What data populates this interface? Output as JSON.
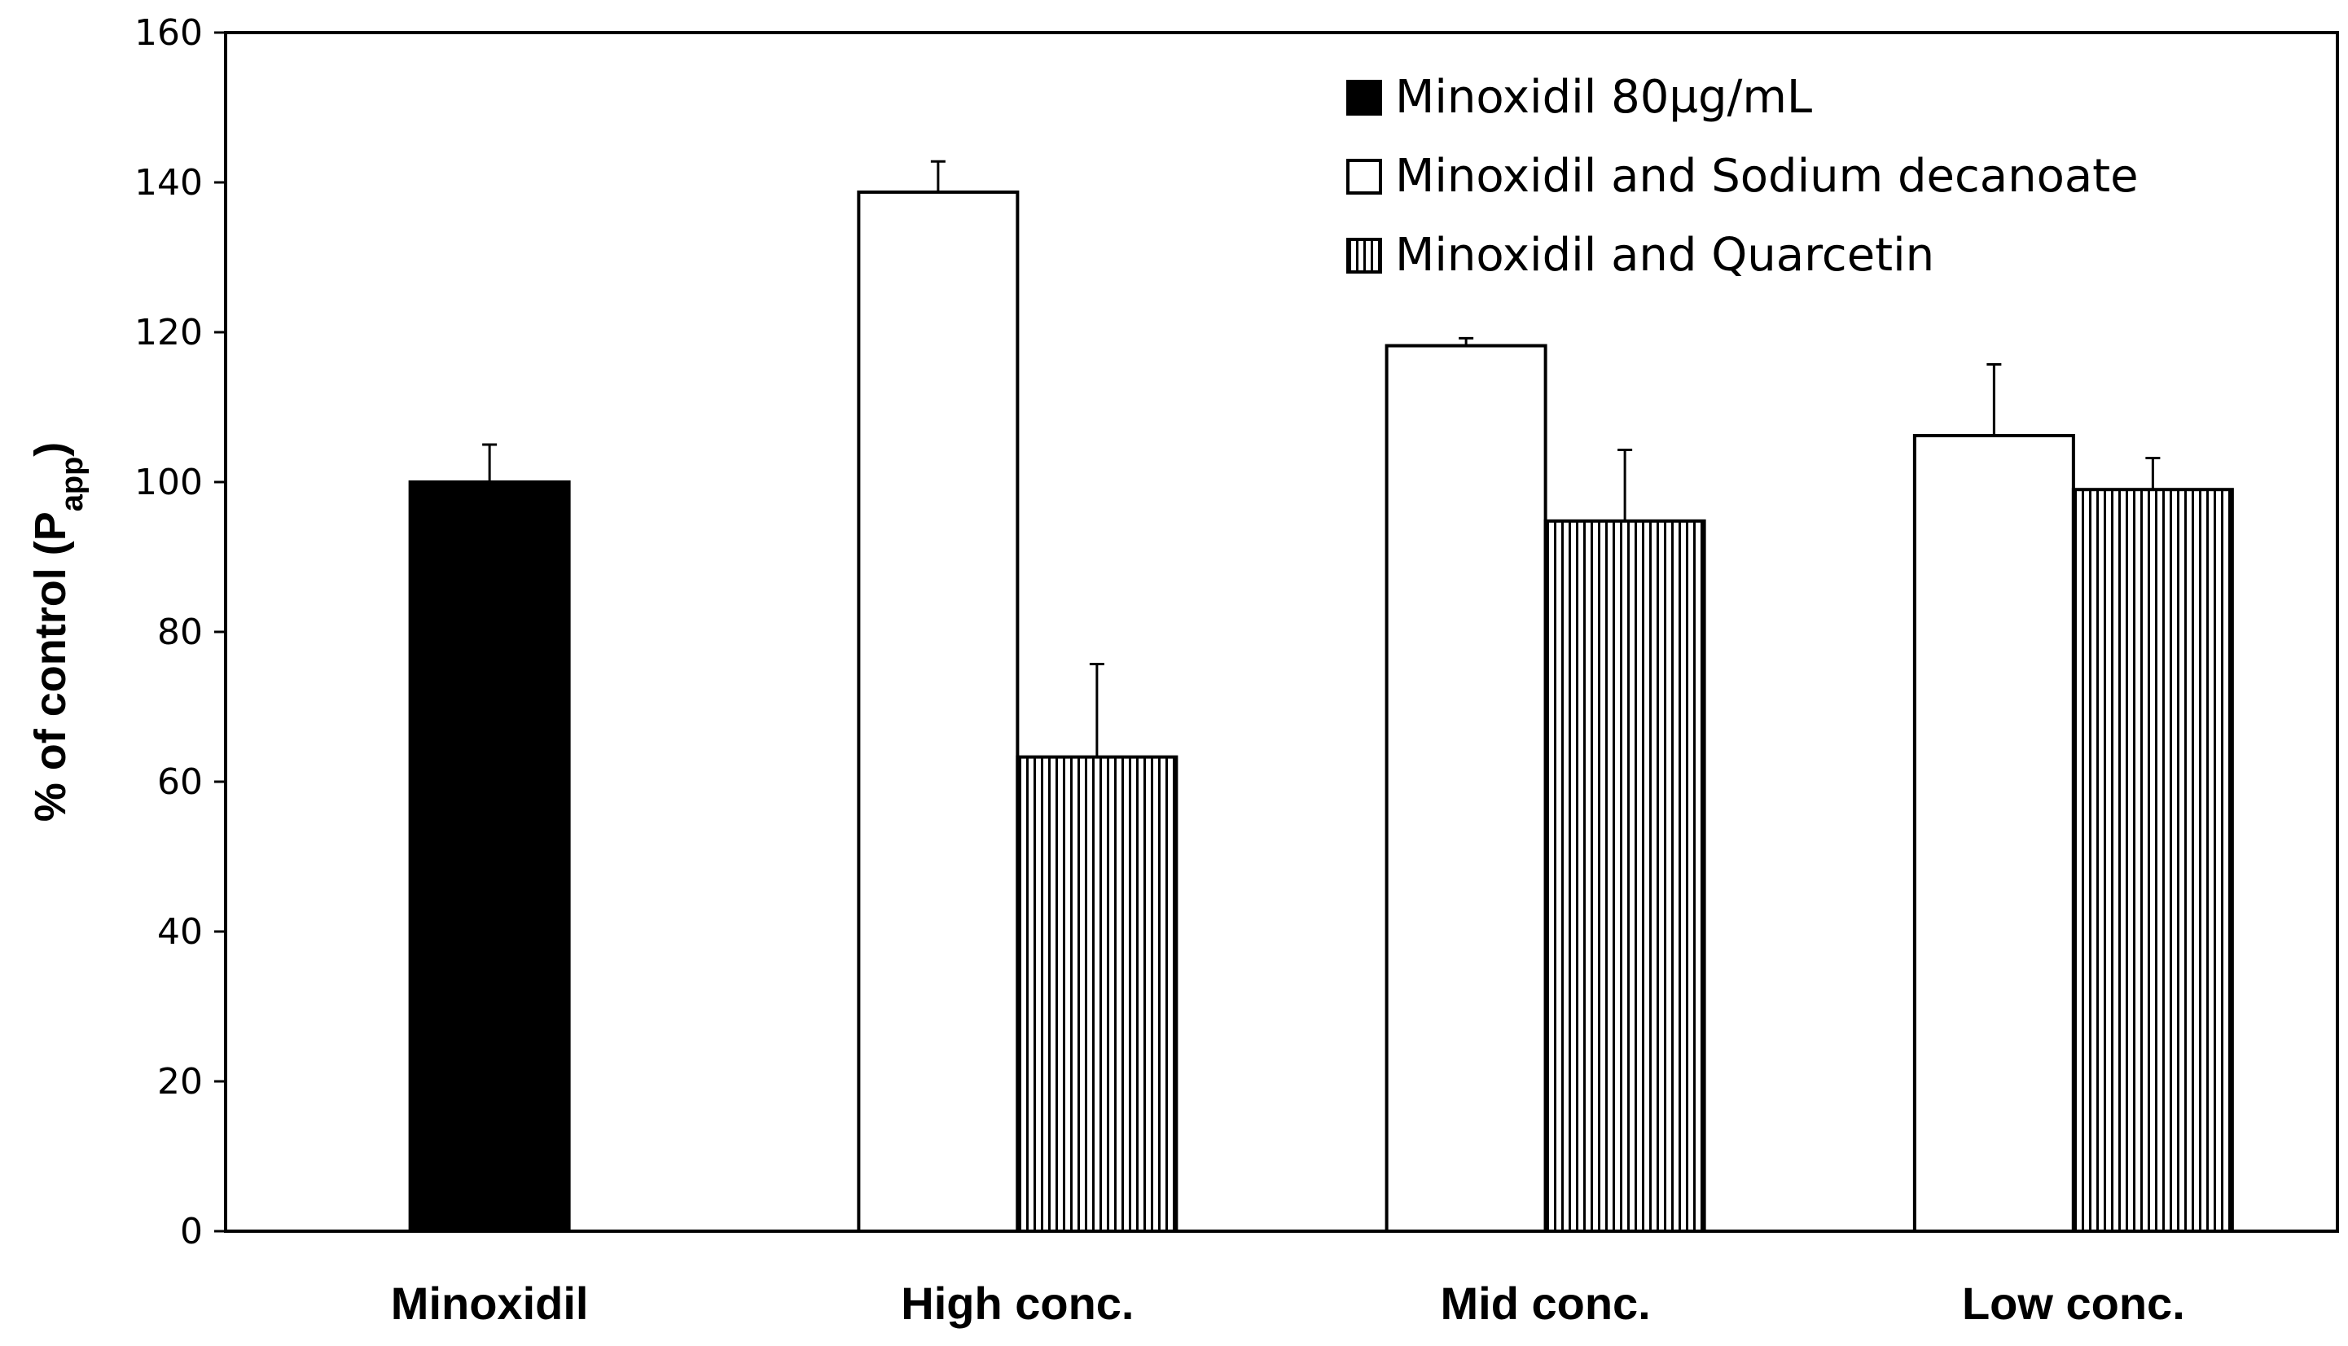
{
  "chart_data": {
    "type": "bar",
    "title": "",
    "xlabel": "",
    "ylabel": "% of control (P",
    "ylabel_subscript": "app",
    "ylabel_close": ")",
    "ylim": [
      0,
      160
    ],
    "yticks": [
      0,
      20,
      40,
      60,
      80,
      100,
      120,
      140,
      160
    ],
    "grid": false,
    "legend_position": "top-right",
    "categories": [
      "Minoxidil",
      "High conc.",
      "Mid conc.",
      "Low conc."
    ],
    "series": [
      {
        "name": "Minoxidil 80µg/mL",
        "fill": "solid",
        "color": "#000000",
        "values": [
          100,
          null,
          null,
          null
        ],
        "errors": [
          5,
          null,
          null,
          null
        ]
      },
      {
        "name": "Minoxidil and Sodium decanoate",
        "fill": "white",
        "color": "#ffffff",
        "values": [
          null,
          138.7,
          118.2,
          106.2
        ],
        "errors": [
          null,
          4.1,
          1.0,
          9.5
        ]
      },
      {
        "name": "Minoxidil and Quarcetin",
        "fill": "vertical-stripes",
        "color": "#ffffff",
        "values": [
          null,
          63.3,
          94.8,
          99.0
        ],
        "errors": [
          null,
          12.4,
          9.5,
          4.2
        ]
      }
    ]
  }
}
